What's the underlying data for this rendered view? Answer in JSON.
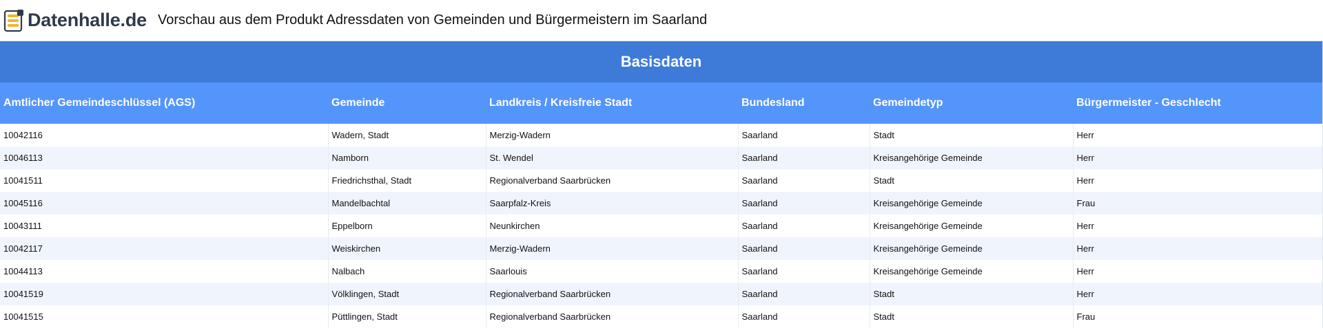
{
  "header": {
    "brand": "Datenhalle.de",
    "title": "Vorschau aus dem Produkt Adressdaten von Gemeinden und Bürgermeistern im Saarland",
    "logo_icon": "database-stack-icon"
  },
  "colors": {
    "section_header": "#3e7bd9",
    "column_header": "#5495fb",
    "row_alt": "#f0f5fd",
    "logo_accent": "#f2b632",
    "logo_dark": "#2e3a4a"
  },
  "section": {
    "title": "Basisdaten"
  },
  "table": {
    "columns": [
      "Amtlicher Gemeindeschlüssel (AGS)",
      "Gemeinde",
      "Landkreis / Kreisfreie Stadt",
      "Bundesland",
      "Gemeindetyp",
      "Bürgermeister - Geschlecht"
    ],
    "rows": [
      [
        "10042116",
        "Wadern, Stadt",
        "Merzig-Wadern",
        "Saarland",
        "Stadt",
        "Herr"
      ],
      [
        "10046113",
        "Namborn",
        "St. Wendel",
        "Saarland",
        "Kreisangehörige Gemeinde",
        "Herr"
      ],
      [
        "10041511",
        "Friedrichsthal, Stadt",
        "Regionalverband Saarbrücken",
        "Saarland",
        "Stadt",
        "Herr"
      ],
      [
        "10045116",
        "Mandelbachtal",
        "Saarpfalz-Kreis",
        "Saarland",
        "Kreisangehörige Gemeinde",
        "Frau"
      ],
      [
        "10043111",
        "Eppelborn",
        "Neunkirchen",
        "Saarland",
        "Kreisangehörige Gemeinde",
        "Herr"
      ],
      [
        "10042117",
        "Weiskirchen",
        "Merzig-Wadern",
        "Saarland",
        "Kreisangehörige Gemeinde",
        "Herr"
      ],
      [
        "10044113",
        "Nalbach",
        "Saarlouis",
        "Saarland",
        "Kreisangehörige Gemeinde",
        "Herr"
      ],
      [
        "10041519",
        "Völklingen, Stadt",
        "Regionalverband Saarbrücken",
        "Saarland",
        "Stadt",
        "Herr"
      ],
      [
        "10041515",
        "Püttlingen, Stadt",
        "Regionalverband Saarbrücken",
        "Saarland",
        "Stadt",
        "Frau"
      ]
    ]
  }
}
